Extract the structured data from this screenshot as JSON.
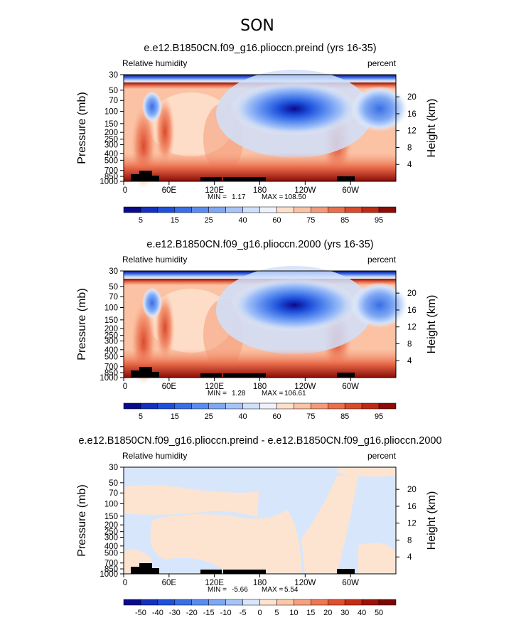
{
  "page": {
    "title": "SON"
  },
  "chart_data": [
    {
      "type": "heatmap",
      "title": "e.e12.B1850CN.f09_g16.plioccn.preind (yrs 16-35)",
      "left_label": "Relative humidity",
      "right_label": "percent",
      "ylabel": "Pressure (mb)",
      "ylabel_right": "Height (km)",
      "x_ticks": [
        "0",
        "60E",
        "120E",
        "180",
        "120W",
        "60W"
      ],
      "y_ticks": [
        "30",
        "50",
        "70",
        "100",
        "150",
        "200",
        "250",
        "300",
        "400",
        "500",
        "700",
        "850",
        "1000"
      ],
      "y_ticks_right": [
        "20",
        "16",
        "12",
        "8",
        "4"
      ],
      "stats": {
        "min_label": "MIN =",
        "min": "1.17",
        "max_label": "MAX =",
        "max": "108.50"
      },
      "colorbar": {
        "levels": [
          5,
          10,
          15,
          20,
          25,
          30,
          40,
          50,
          60,
          70,
          75,
          80,
          85,
          90,
          95
        ],
        "labels": [
          "5",
          "15",
          "25",
          "40",
          "60",
          "75",
          "85",
          "95"
        ],
        "colors": [
          "#0a0a8c",
          "#1430c0",
          "#1e50dc",
          "#3a6ee6",
          "#5a8cf0",
          "#7ea8f4",
          "#a6c4f8",
          "#cfe0fc",
          "#eef2f8",
          "#fde0cc",
          "#fbc2a4",
          "#f49a78",
          "#ea6e4c",
          "#dc4a2c",
          "#c02a14",
          "#8c0c06"
        ]
      }
    },
    {
      "type": "heatmap",
      "title": "e.e12.B1850CN.f09_g16.plioccn.2000 (yrs 16-35)",
      "left_label": "Relative humidity",
      "right_label": "percent",
      "ylabel": "Pressure (mb)",
      "ylabel_right": "Height (km)",
      "x_ticks": [
        "0",
        "60E",
        "120E",
        "180",
        "120W",
        "60W"
      ],
      "y_ticks": [
        "30",
        "50",
        "70",
        "100",
        "150",
        "200",
        "250",
        "300",
        "400",
        "500",
        "700",
        "850",
        "1000"
      ],
      "y_ticks_right": [
        "20",
        "16",
        "12",
        "8",
        "4"
      ],
      "stats": {
        "min_label": "MIN =",
        "min": "1.28",
        "max_label": "MAX =",
        "max": "106.61"
      },
      "colorbar": {
        "levels": [
          5,
          10,
          15,
          20,
          25,
          30,
          40,
          50,
          60,
          70,
          75,
          80,
          85,
          90,
          95
        ],
        "labels": [
          "5",
          "15",
          "25",
          "40",
          "60",
          "75",
          "85",
          "95"
        ],
        "colors": [
          "#0a0a8c",
          "#1430c0",
          "#1e50dc",
          "#3a6ee6",
          "#5a8cf0",
          "#7ea8f4",
          "#a6c4f8",
          "#cfe0fc",
          "#eef2f8",
          "#fde0cc",
          "#fbc2a4",
          "#f49a78",
          "#ea6e4c",
          "#dc4a2c",
          "#c02a14",
          "#8c0c06"
        ]
      }
    },
    {
      "type": "heatmap",
      "title": "e.e12.B1850CN.f09_g16.plioccn.preind - e.e12.B1850CN.f09_g16.plioccn.2000",
      "left_label": "Relative humidity",
      "right_label": "percent",
      "ylabel": "Pressure (mb)",
      "ylabel_right": "Height (km)",
      "x_ticks": [
        "0",
        "60E",
        "120E",
        "180",
        "120W",
        "60W"
      ],
      "y_ticks": [
        "30",
        "50",
        "70",
        "100",
        "150",
        "200",
        "250",
        "300",
        "400",
        "500",
        "700",
        "850",
        "1000"
      ],
      "y_ticks_right": [
        "20",
        "16",
        "12",
        "8",
        "4"
      ],
      "stats": {
        "min_label": "MIN =",
        "min": "-5.66",
        "max_label": "MAX =",
        "max": "5.54"
      },
      "colorbar": {
        "levels": [
          -50,
          -40,
          -30,
          -20,
          -15,
          -10,
          -5,
          0,
          5,
          10,
          15,
          20,
          30,
          40,
          50
        ],
        "labels": [
          "-50",
          "-40",
          "-30",
          "-20",
          "-15",
          "-10",
          "-5",
          "0",
          "5",
          "10",
          "15",
          "20",
          "30",
          "40",
          "50"
        ],
        "colors": [
          "#0a0a8c",
          "#1430c0",
          "#1e50dc",
          "#3a6ee6",
          "#5a8cf0",
          "#7ea8f4",
          "#a6c4f8",
          "#d8e6fc",
          "#fde4d0",
          "#fbc8aa",
          "#f6a07e",
          "#ee7654",
          "#e04e30",
          "#c42c16",
          "#9a1208",
          "#7a0804"
        ]
      }
    }
  ]
}
